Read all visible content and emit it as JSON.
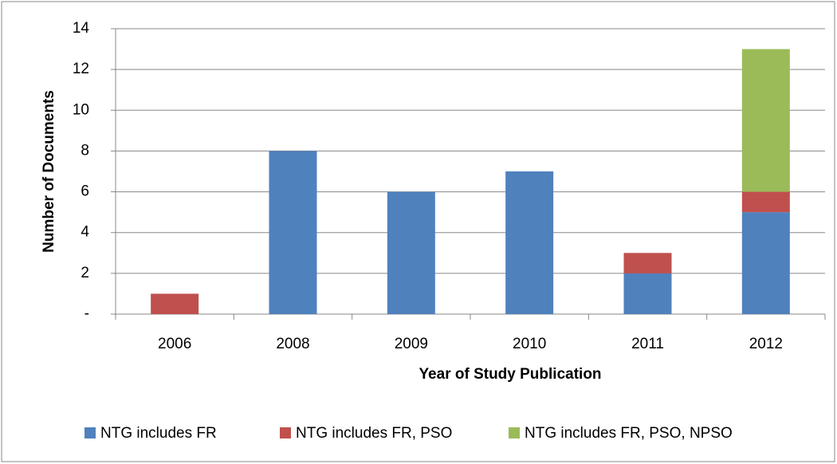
{
  "chart_data": {
    "type": "stacked-bar",
    "categories": [
      "2006",
      "2008",
      "2009",
      "2010",
      "2011",
      "2012"
    ],
    "series": [
      {
        "name": "NTG includes FR",
        "color": "#4f81bd",
        "values": [
          0,
          8,
          6,
          7,
          2,
          5
        ]
      },
      {
        "name": "NTG includes FR, PSO",
        "color": "#c0504d",
        "values": [
          1,
          0,
          0,
          0,
          1,
          1
        ]
      },
      {
        "name": "NTG includes FR, PSO, NPSO",
        "color": "#9bbb59",
        "values": [
          0,
          0,
          0,
          0,
          0,
          7
        ]
      }
    ],
    "x_label": "Year of Study Publication",
    "y_label": "Number of Documents",
    "ylim": [
      0,
      14
    ],
    "yticks": [
      {
        "value": 0,
        "label": "-"
      },
      2,
      4,
      6,
      8,
      10,
      12,
      14
    ],
    "grid": true,
    "legend": "bottom"
  }
}
